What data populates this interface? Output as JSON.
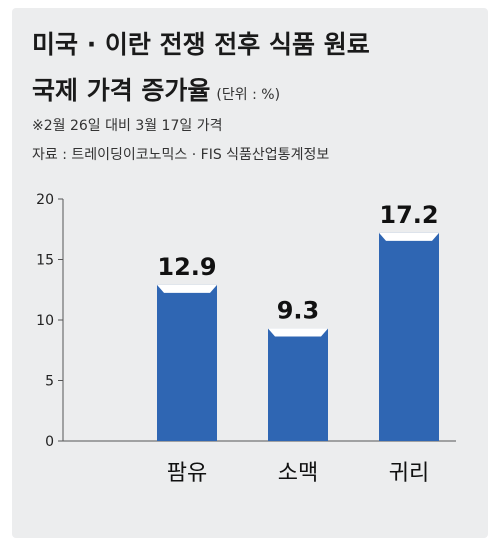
{
  "title_line1": "미국 · 이란 전쟁 전후 식품 원료",
  "title_line2": "국제 가격 증가율",
  "unit": "(단위 : %)",
  "note": "※2월 26일 대비 3월 17일 가격",
  "source": "자료 : 트레이딩이코노믹스 · FIS 식품산업통계정보",
  "colors": {
    "bar": "#2f66b3",
    "bar_cap": "#ffffff",
    "background": "#ecedee",
    "axis": "#555555"
  },
  "chart_data": {
    "type": "bar",
    "categories": [
      "팜유",
      "소맥",
      "귀리"
    ],
    "values": [
      12.9,
      9.3,
      17.2
    ],
    "value_labels": [
      "12.9",
      "9.3",
      "17.2"
    ],
    "ylim": [
      0,
      20
    ],
    "yticks": [
      0,
      5,
      10,
      15,
      20
    ],
    "ytick_labels": [
      "0",
      "5",
      "10",
      "15",
      "20"
    ],
    "grid": false
  }
}
